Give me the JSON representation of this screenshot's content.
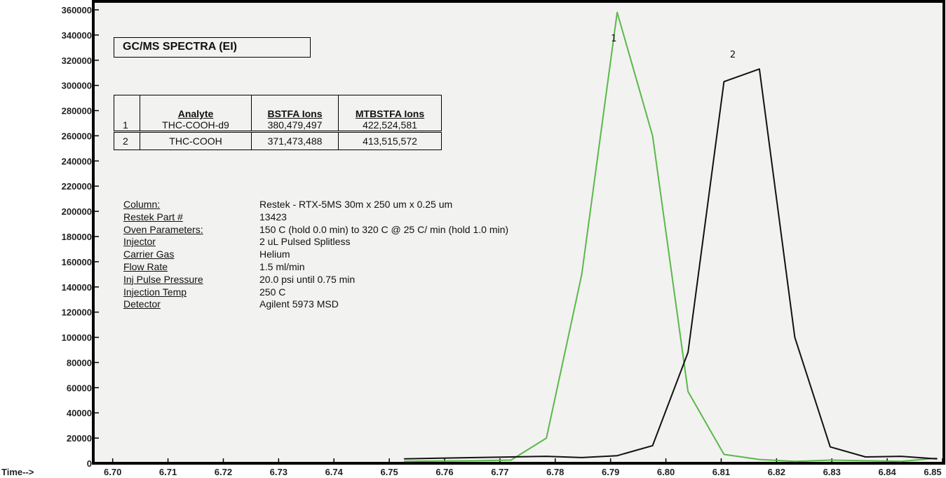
{
  "chart_data": {
    "type": "line",
    "xlabel": "Time-->",
    "x_ticks": [
      "6.70",
      "6.71",
      "6.72",
      "6.73",
      "6.74",
      "6.75",
      "6.76",
      "6.77",
      "6.78",
      "6.79",
      "6.80",
      "6.81",
      "6.82",
      "6.83",
      "6.84",
      "6.85"
    ],
    "y_ticks": [
      "0",
      "20000",
      "40000",
      "60000",
      "80000",
      "100000",
      "120000",
      "140000",
      "160000",
      "180000",
      "200000",
      "220000",
      "240000",
      "260000",
      "280000",
      "300000",
      "320000",
      "340000",
      "360000"
    ],
    "xlim": [
      6.697,
      6.85
    ],
    "ylim": [
      0,
      360000
    ],
    "grid": false,
    "series": [
      {
        "name": "1",
        "color": "#5ab84a",
        "x": [
          6.7527,
          6.7591,
          6.7655,
          6.772,
          6.7784,
          6.7848,
          6.7912,
          6.7976,
          6.804,
          6.8105,
          6.8169,
          6.8233,
          6.8297,
          6.8361,
          6.8425,
          6.849
        ],
        "y": [
          1500,
          1800,
          2000,
          2500,
          20000,
          150000,
          358000,
          260000,
          57000,
          7000,
          3000,
          1500,
          2500,
          2000,
          1500,
          4000
        ]
      },
      {
        "name": "2",
        "color": "#111111",
        "x": [
          6.7527,
          6.7591,
          6.7655,
          6.772,
          6.7784,
          6.7848,
          6.7912,
          6.7976,
          6.804,
          6.8105,
          6.8169,
          6.8233,
          6.8297,
          6.8361,
          6.8425,
          6.849
        ],
        "y": [
          3500,
          4000,
          4500,
          5000,
          5500,
          4500,
          6000,
          14000,
          88000,
          303000,
          313000,
          100000,
          13000,
          5000,
          5500,
          3500
        ]
      }
    ],
    "annotations": [
      {
        "text": "1",
        "x": 6.7906,
        "y": 335000
      },
      {
        "text": "2",
        "x": 6.8121,
        "y": 322000
      }
    ]
  },
  "title": "GC/MS SPECTRA (EI)",
  "ions_table": {
    "headers": [
      "",
      "Analyte",
      "BSTFA Ions",
      "MTBSTFA Ions"
    ],
    "rows": [
      [
        "1",
        "THC-COOH-d9",
        "380,479,497",
        "422,524,581"
      ],
      [
        "2",
        "THC-COOH",
        "371,473,488",
        "413,515,572"
      ]
    ]
  },
  "parameters": [
    {
      "key": "Column:",
      "value": " Restek - RTX-5MS 30m x 250 um x 0.25 um"
    },
    {
      "key": "Restek Part #",
      "value": "13423"
    },
    {
      "key": "Oven Parameters:",
      "value": "150 C (hold 0.0 min) to 320 C @ 25 C/ min (hold 1.0 min)"
    },
    {
      "key": "Injector",
      "value": "2 uL Pulsed Splitless"
    },
    {
      "key": "Carrier Gas",
      "value": "Helium"
    },
    {
      "key": "Flow Rate",
      "value": "1.5 ml/min"
    },
    {
      "key": "Inj Pulse Pressure",
      "value": "20.0 psi until 0.75 min"
    },
    {
      "key": "Injection Temp",
      "value": "250 C"
    },
    {
      "key": "Detector",
      "value": "Agilent 5973 MSD"
    }
  ]
}
